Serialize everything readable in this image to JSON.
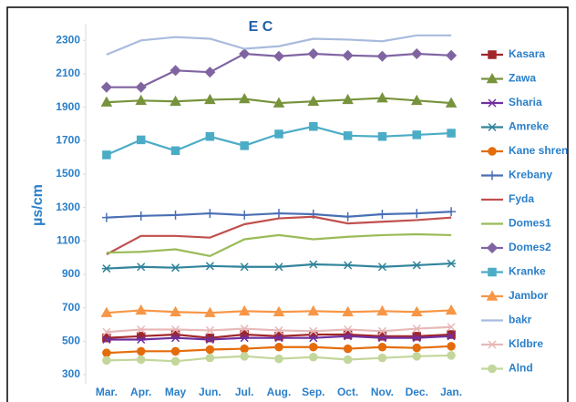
{
  "chart_data": {
    "type": "line",
    "title": "E C",
    "y_label": "µs/cm",
    "categories": [
      "Mar.",
      "Apr.",
      "May",
      "Jun.",
      "Jul.",
      "Aug.",
      "Sep.",
      "Oct.",
      "Nov.",
      "Dec.",
      "Jan."
    ],
    "ylim": [
      300,
      2400
    ],
    "yticks": [
      300,
      500,
      700,
      900,
      1100,
      1300,
      1500,
      1700,
      1900,
      2100,
      2300
    ],
    "grid": false,
    "legend": "right",
    "series": [
      {
        "name": "Kasara",
        "color": "#a0262a",
        "marker": "square",
        "values": [
          520,
          530,
          540,
          520,
          540,
          530,
          540,
          540,
          530,
          530,
          540
        ]
      },
      {
        "name": "Zawa",
        "color": "#77933c",
        "marker": "triangle",
        "values": [
          1930,
          1940,
          1935,
          1945,
          1950,
          1925,
          1935,
          1945,
          1955,
          1940,
          1925
        ]
      },
      {
        "name": "Sharia",
        "color": "#7030a0",
        "marker": "x",
        "values": [
          510,
          510,
          520,
          510,
          520,
          520,
          520,
          530,
          520,
          520,
          530
        ]
      },
      {
        "name": "Amreke",
        "color": "#31849b",
        "marker": "asterisk",
        "values": [
          935,
          945,
          940,
          950,
          945,
          945,
          960,
          955,
          945,
          955,
          965
        ]
      },
      {
        "name": "Kane shren",
        "color": "#e46c0a",
        "marker": "circle",
        "values": [
          430,
          440,
          440,
          450,
          455,
          465,
          465,
          455,
          465,
          460,
          470
        ]
      },
      {
        "name": "Krebany",
        "color": "#4a6fb5",
        "marker": "plus",
        "values": [
          1240,
          1250,
          1255,
          1265,
          1255,
          1265,
          1260,
          1245,
          1260,
          1265,
          1275
        ]
      },
      {
        "name": "Fyda",
        "color": "#c0504d",
        "marker": "none",
        "values": [
          1020,
          1130,
          1130,
          1120,
          1200,
          1235,
          1245,
          1205,
          1215,
          1225,
          1240
        ]
      },
      {
        "name": "Domes1",
        "color": "#9bbb59",
        "marker": "none",
        "values": [
          1030,
          1035,
          1050,
          1010,
          1110,
          1135,
          1110,
          1125,
          1135,
          1140,
          1135
        ]
      },
      {
        "name": "Domes2",
        "color": "#8064a2",
        "marker": "diamond",
        "values": [
          2020,
          2020,
          2120,
          2110,
          2220,
          2205,
          2220,
          2210,
          2205,
          2220,
          2210
        ]
      },
      {
        "name": "Kranke",
        "color": "#4bacc6",
        "marker": "square",
        "values": [
          1615,
          1705,
          1640,
          1725,
          1670,
          1740,
          1785,
          1730,
          1725,
          1735,
          1745
        ]
      },
      {
        "name": "Jambor",
        "color": "#f79646",
        "marker": "triangle",
        "values": [
          670,
          685,
          675,
          670,
          680,
          675,
          680,
          675,
          680,
          675,
          685
        ]
      },
      {
        "name": "bakr",
        "color": "#a9bbde",
        "marker": "none",
        "values": [
          2215,
          2300,
          2320,
          2310,
          2250,
          2265,
          2310,
          2305,
          2295,
          2330,
          2330
        ]
      },
      {
        "name": "Kldbre",
        "color": "#e6b9b8",
        "marker": "x",
        "values": [
          555,
          570,
          570,
          565,
          575,
          565,
          560,
          570,
          560,
          575,
          585
        ]
      },
      {
        "name": "Alnd",
        "color": "#c3d69b",
        "marker": "circle",
        "values": [
          385,
          390,
          380,
          400,
          410,
          395,
          405,
          390,
          400,
          410,
          415
        ]
      }
    ]
  }
}
